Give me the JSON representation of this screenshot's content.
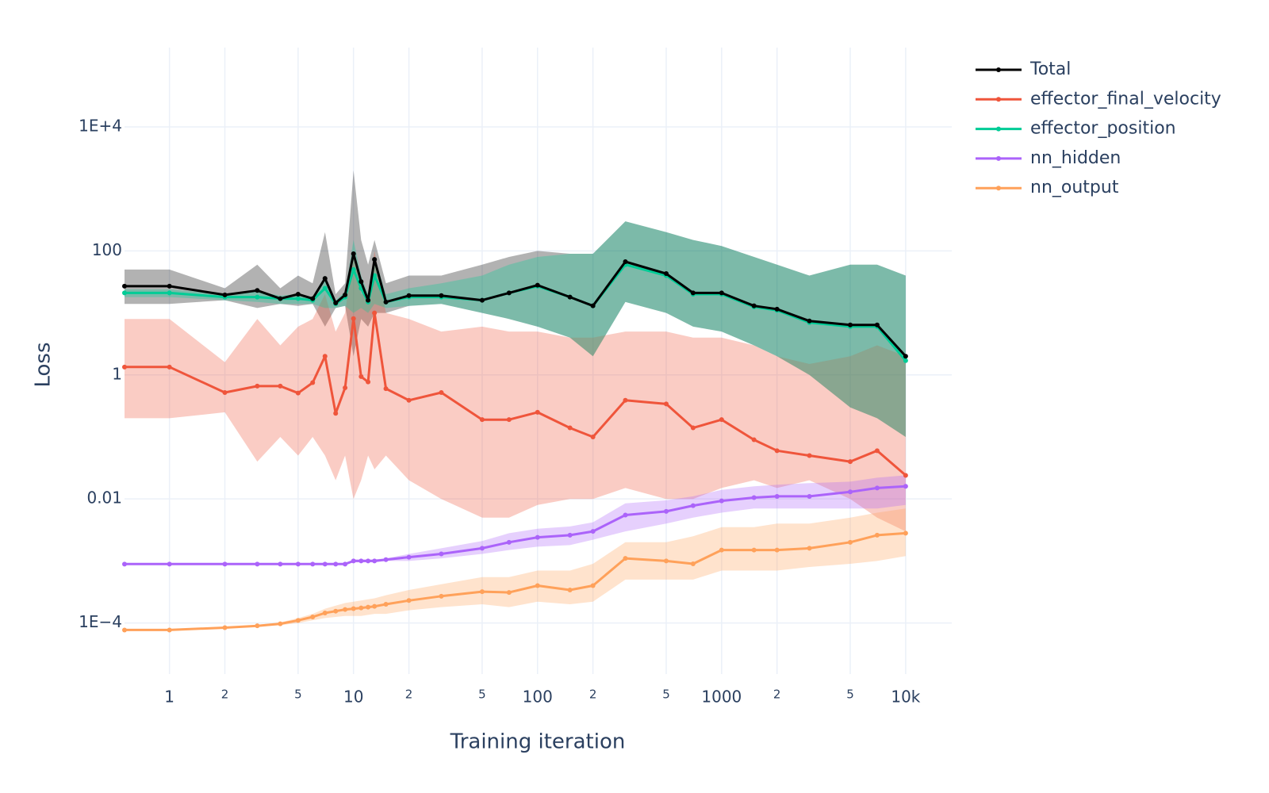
{
  "chart_data": {
    "type": "line",
    "xlabel": "Training iteration",
    "ylabel": "Loss",
    "xscale": "log",
    "yscale": "log",
    "grid": true,
    "legend": "top-right",
    "markers": true,
    "xlim": [
      0.57,
      17800
    ],
    "ylim": [
      1.5e-05,
      190000
    ],
    "xticks": [
      1,
      2,
      5,
      10,
      {
        "value": 20,
        "label": "2"
      },
      {
        "value": 50,
        "label": "5"
      },
      100,
      {
        "value": 200,
        "label": "2"
      },
      {
        "value": 500,
        "label": "5"
      },
      1000,
      {
        "value": 2000,
        "label": "2"
      },
      {
        "value": 5000,
        "label": "5"
      },
      {
        "value": 10000,
        "label": "10k"
      }
    ],
    "yticks": [
      {
        "value": 10000,
        "label": "1E+4"
      },
      100,
      1,
      0.01,
      {
        "value": 0.0001,
        "label": "1E−4"
      }
    ],
    "x": [
      0.57,
      1,
      2,
      3,
      4,
      5,
      6,
      7,
      8,
      9,
      10,
      11,
      12,
      13,
      15,
      20,
      30,
      50,
      70,
      100,
      150,
      200,
      300,
      500,
      700,
      1000,
      1500,
      2000,
      3000,
      5000,
      7000,
      10000
    ],
    "series": [
      {
        "name": "Total",
        "color": "#000000",
        "values": [
          27,
          27,
          19.5,
          23,
          17,
          20,
          17,
          36,
          14.5,
          19.5,
          90,
          32,
          16,
          73,
          15,
          19,
          19,
          16,
          21,
          28,
          18,
          13,
          67,
          43,
          21,
          21,
          13,
          11.5,
          7.4,
          6.4,
          6.4,
          2.0
        ],
        "low": [
          14,
          14,
          16,
          12,
          14,
          13,
          14,
          6,
          12,
          13,
          2,
          8,
          6,
          10,
          10,
          13,
          14,
          10,
          8,
          6,
          4,
          2,
          15,
          10,
          6,
          5,
          3,
          2,
          1,
          0.3,
          0.2,
          0.1
        ],
        "high": [
          50,
          50,
          25,
          60,
          25,
          40,
          30,
          200,
          20,
          30,
          2000,
          150,
          60,
          150,
          30,
          40,
          40,
          60,
          80,
          100,
          90,
          90,
          300,
          200,
          150,
          120,
          80,
          60,
          40,
          60,
          60,
          40
        ]
      },
      {
        "name": "effector_final_velocity",
        "color": "#EF553B",
        "values": [
          1.34,
          1.34,
          0.52,
          0.66,
          0.66,
          0.51,
          0.75,
          2.0,
          0.24,
          0.62,
          8.1,
          0.94,
          0.77,
          10,
          0.6,
          0.39,
          0.52,
          0.19,
          0.19,
          0.25,
          0.14,
          0.1,
          0.39,
          0.34,
          0.14,
          0.19,
          0.09,
          0.06,
          0.05,
          0.04,
          0.06,
          0.024
        ],
        "low": [
          0.2,
          0.2,
          0.25,
          0.04,
          0.1,
          0.05,
          0.1,
          0.05,
          0.02,
          0.05,
          0.01,
          0.02,
          0.05,
          0.03,
          0.05,
          0.02,
          0.01,
          0.005,
          0.005,
          0.008,
          0.01,
          0.01,
          0.015,
          0.01,
          0.01,
          0.015,
          0.02,
          0.015,
          0.02,
          0.01,
          0.005,
          0.003
        ],
        "high": [
          8,
          8,
          1.6,
          8,
          3,
          6,
          8,
          20,
          5,
          10,
          100,
          20,
          20,
          100,
          10,
          8,
          5,
          6,
          5,
          5,
          4,
          4,
          5,
          5,
          4,
          4,
          3,
          2,
          1.5,
          2,
          3,
          2
        ]
      },
      {
        "name": "effector_position",
        "color": "#00CC96",
        "values": [
          21,
          21,
          18,
          18,
          17,
          17,
          16,
          25,
          14,
          18,
          50,
          25,
          15,
          40,
          15,
          18,
          18,
          16,
          21,
          27,
          18,
          13,
          60,
          40,
          20,
          20,
          12.5,
          11,
          7,
          6,
          6,
          1.7
        ],
        "low": [
          18,
          18,
          16,
          15,
          14,
          14,
          14,
          12,
          12,
          13,
          10,
          12,
          10,
          14,
          12,
          13,
          14,
          10,
          8,
          6,
          4,
          2,
          15,
          10,
          6,
          5,
          3,
          2,
          1,
          0.3,
          0.2,
          0.1
        ],
        "high": [
          24,
          24,
          20,
          22,
          19,
          20,
          18,
          40,
          16,
          22,
          150,
          40,
          20,
          80,
          20,
          25,
          30,
          40,
          60,
          80,
          90,
          90,
          300,
          200,
          150,
          120,
          80,
          60,
          40,
          60,
          60,
          40
        ]
      },
      {
        "name": "nn_hidden",
        "color": "#AB63FA",
        "values": [
          0.00089,
          0.00089,
          0.00089,
          0.00089,
          0.00089,
          0.00089,
          0.00089,
          0.00089,
          0.00089,
          0.00089,
          0.001,
          0.001,
          0.001,
          0.001,
          0.00105,
          0.00115,
          0.0013,
          0.0016,
          0.002,
          0.0024,
          0.0026,
          0.003,
          0.0055,
          0.0063,
          0.0078,
          0.0093,
          0.0105,
          0.011,
          0.011,
          0.013,
          0.015,
          0.016
        ],
        "low": [
          0.00087,
          0.00087,
          0.00087,
          0.00087,
          0.00087,
          0.00087,
          0.00087,
          0.00087,
          0.00087,
          0.00087,
          0.00095,
          0.00095,
          0.00095,
          0.00095,
          0.001,
          0.001,
          0.0011,
          0.0013,
          0.0015,
          0.0017,
          0.0018,
          0.0022,
          0.003,
          0.004,
          0.005,
          0.006,
          0.007,
          0.007,
          0.007,
          0.007,
          0.007,
          0.008
        ],
        "high": [
          0.00091,
          0.00091,
          0.00091,
          0.00091,
          0.00091,
          0.00091,
          0.00091,
          0.00091,
          0.00091,
          0.00091,
          0.00106,
          0.00106,
          0.00106,
          0.00106,
          0.0011,
          0.0013,
          0.0016,
          0.0021,
          0.0028,
          0.0033,
          0.0036,
          0.0042,
          0.0085,
          0.0095,
          0.011,
          0.014,
          0.016,
          0.017,
          0.018,
          0.019,
          0.022,
          0.024
        ]
      },
      {
        "name": "nn_output",
        "color": "#FFA15A",
        "values": [
          7.7e-05,
          7.7e-05,
          8.4e-05,
          9e-05,
          9.7e-05,
          0.00011,
          0.000125,
          0.000145,
          0.000155,
          0.000165,
          0.00017,
          0.000175,
          0.00018,
          0.000185,
          0.0002,
          0.00023,
          0.00027,
          0.00032,
          0.00031,
          0.0004,
          0.00034,
          0.0004,
          0.0011,
          0.001,
          0.0009,
          0.0015,
          0.0015,
          0.0015,
          0.0016,
          0.002,
          0.0026,
          0.0028
        ],
        "low": [
          7.6e-05,
          7.6e-05,
          8.2e-05,
          8.7e-05,
          9.2e-05,
          0.0001,
          0.00011,
          0.00012,
          0.000125,
          0.00013,
          0.00013,
          0.00013,
          0.000135,
          0.00014,
          0.00014,
          0.00016,
          0.00018,
          0.0002,
          0.00018,
          0.00022,
          0.0002,
          0.00022,
          0.0005,
          0.0005,
          0.0005,
          0.0007,
          0.0007,
          0.0007,
          0.0008,
          0.0009,
          0.001,
          0.0012
        ],
        "high": [
          7.8e-05,
          7.8e-05,
          8.6e-05,
          9.3e-05,
          0.000102,
          0.00012,
          0.00014,
          0.00017,
          0.00019,
          0.00021,
          0.00022,
          0.00023,
          0.00024,
          0.00025,
          0.00028,
          0.00034,
          0.00042,
          0.00055,
          0.00055,
          0.0007,
          0.0007,
          0.0009,
          0.002,
          0.002,
          0.0025,
          0.0035,
          0.0035,
          0.004,
          0.004,
          0.005,
          0.006,
          0.007
        ]
      }
    ]
  }
}
